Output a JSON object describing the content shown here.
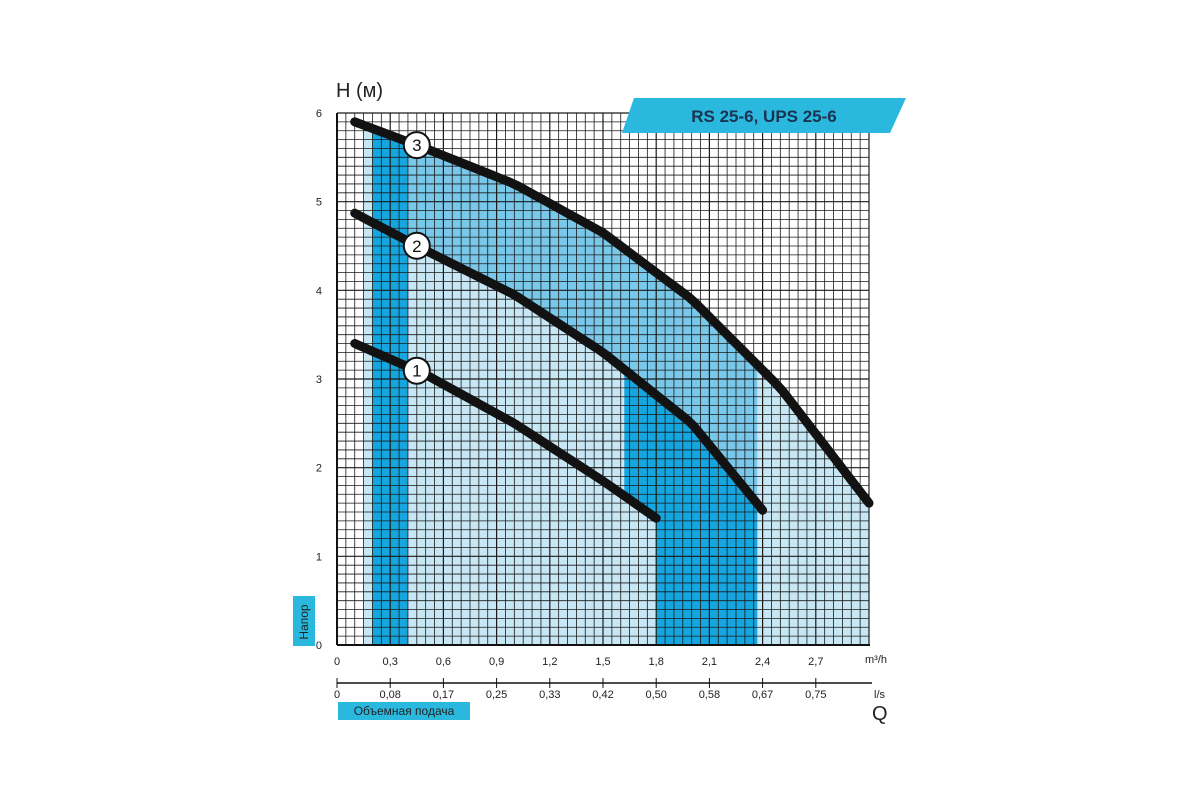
{
  "chart_data": {
    "type": "line",
    "title": "RS 25-6, UPS 25-6",
    "ylabel": "H (м)",
    "ylabel_vertical": "Напор",
    "xlabel": "Объемная подача",
    "x_symbol": "Q",
    "x_unit_top": "m³/h",
    "x_unit_bottom": "l/s",
    "ylim": [
      0,
      6
    ],
    "xlim": [
      0,
      3.0
    ],
    "y_ticks": [
      "0",
      "1",
      "2",
      "3",
      "4",
      "5",
      "6"
    ],
    "x_ticks_m3h": [
      "0",
      "0,3",
      "0,6",
      "0,9",
      "1,2",
      "1,5",
      "1,8",
      "2,1",
      "2,4",
      "2,7"
    ],
    "x_ticks_ls": [
      "0",
      "0,08",
      "0,17",
      "0,25",
      "0,33",
      "0,42",
      "0,50",
      "0,58",
      "0,67",
      "0,75"
    ],
    "grid": true,
    "series": [
      {
        "name": "1",
        "x": [
          0.1,
          0.5,
          1.0,
          1.5,
          1.8
        ],
        "y": [
          3.4,
          3.05,
          2.5,
          1.85,
          1.43
        ],
        "marker_x": 0.45
      },
      {
        "name": "2",
        "x": [
          0.1,
          0.5,
          1.0,
          1.5,
          2.0,
          2.4
        ],
        "y": [
          4.87,
          4.45,
          3.95,
          3.3,
          2.5,
          1.52
        ],
        "marker_x": 0.45
      },
      {
        "name": "3",
        "x": [
          0.1,
          0.5,
          1.0,
          1.5,
          2.0,
          2.5,
          3.0
        ],
        "y": [
          5.9,
          5.6,
          5.2,
          4.65,
          3.9,
          2.9,
          1.6
        ],
        "marker_x": 0.45
      }
    ],
    "shaded_region_x": [
      0.2,
      2.37
    ],
    "colors": {
      "light_fill": "#c7e7f5",
      "mid_fill": "#79c8ea",
      "strong_fill": "#16a6df",
      "banner": "#2bb8df",
      "curve": "#121212",
      "grid": "#1a1a1a"
    }
  }
}
